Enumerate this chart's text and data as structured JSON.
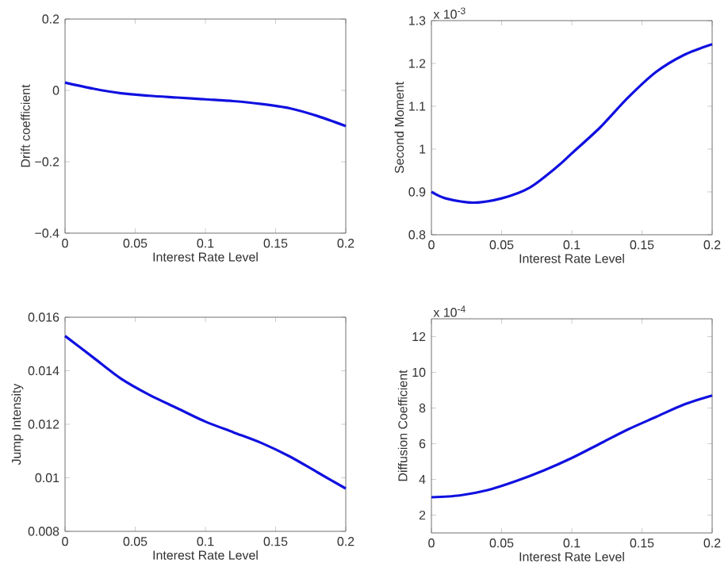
{
  "chart_data": [
    {
      "type": "line",
      "xlabel": "Interest Rate Level",
      "ylabel": "Drift coefficient",
      "x": [
        0,
        0.02,
        0.04,
        0.06,
        0.08,
        0.1,
        0.12,
        0.14,
        0.16,
        0.18,
        0.2
      ],
      "series": [
        {
          "color": "#1010e0",
          "values": [
            0.022,
            0.005,
            -0.008,
            -0.015,
            -0.02,
            -0.025,
            -0.03,
            -0.038,
            -0.05,
            -0.072,
            -0.1
          ]
        }
      ],
      "xlim": [
        0,
        0.2
      ],
      "xticks": [
        0,
        0.05,
        0.1,
        0.15,
        0.2
      ],
      "ylim": [
        -0.4,
        0.2
      ],
      "yticks": [
        {
          "value": -0.4,
          "label": "−0.4"
        },
        {
          "value": -0.2,
          "label": "−0.2"
        },
        0,
        0.2
      ],
      "grid": false
    },
    {
      "type": "line",
      "xlabel": "Interest Rate Level",
      "ylabel": "Second Moment",
      "annotations": [
        "x 10$^{-3}$"
      ],
      "x": [
        0,
        0.01,
        0.03,
        0.05,
        0.07,
        0.09,
        0.1,
        0.12,
        0.14,
        0.16,
        0.18,
        0.2
      ],
      "series": [
        {
          "color": "#1010e0",
          "values": [
            0.9,
            0.885,
            0.875,
            0.885,
            0.91,
            0.96,
            0.99,
            1.05,
            1.12,
            1.18,
            1.22,
            1.245
          ]
        }
      ],
      "xlim": [
        0,
        0.2
      ],
      "xticks": [
        0,
        0.05,
        0.1,
        0.15,
        0.2
      ],
      "ylim": [
        0.8,
        1.3
      ],
      "yticks": [
        0.8,
        0.9,
        1,
        1.1,
        1.2,
        1.3
      ],
      "grid": false
    },
    {
      "type": "line",
      "xlabel": "Interest Rate Level",
      "ylabel": "Jump Intensity",
      "x": [
        0,
        0.02,
        0.04,
        0.06,
        0.08,
        0.1,
        0.12,
        0.14,
        0.16,
        0.18,
        0.2
      ],
      "series": [
        {
          "color": "#1010e0",
          "values": [
            0.0153,
            0.0145,
            0.0137,
            0.0131,
            0.0126,
            0.0121,
            0.0117,
            0.0113,
            0.0108,
            0.0102,
            0.0096
          ]
        }
      ],
      "xlim": [
        0,
        0.2
      ],
      "xticks": [
        0,
        0.05,
        0.1,
        0.15,
        0.2
      ],
      "ylim": [
        0.008,
        0.016
      ],
      "yticks": [
        0.008,
        0.01,
        0.012,
        0.014,
        0.016
      ],
      "grid": false
    },
    {
      "type": "line",
      "xlabel": "Interest Rate Level",
      "ylabel": "Diffusion Coefficient",
      "annotations": [
        "x 10$^{-4}$"
      ],
      "x": [
        0,
        0.02,
        0.04,
        0.06,
        0.08,
        0.1,
        0.12,
        0.14,
        0.16,
        0.18,
        0.2
      ],
      "series": [
        {
          "color": "#1010e0",
          "values": [
            3.0,
            3.1,
            3.4,
            3.9,
            4.5,
            5.2,
            6.0,
            6.8,
            7.5,
            8.2,
            8.7
          ]
        }
      ],
      "xlim": [
        0,
        0.2
      ],
      "xticks": [
        0,
        0.05,
        0.1,
        0.15,
        0.2
      ],
      "ylim": [
        1,
        13
      ],
      "yticks": [
        2,
        4,
        6,
        8,
        10,
        12
      ],
      "grid": false
    }
  ]
}
